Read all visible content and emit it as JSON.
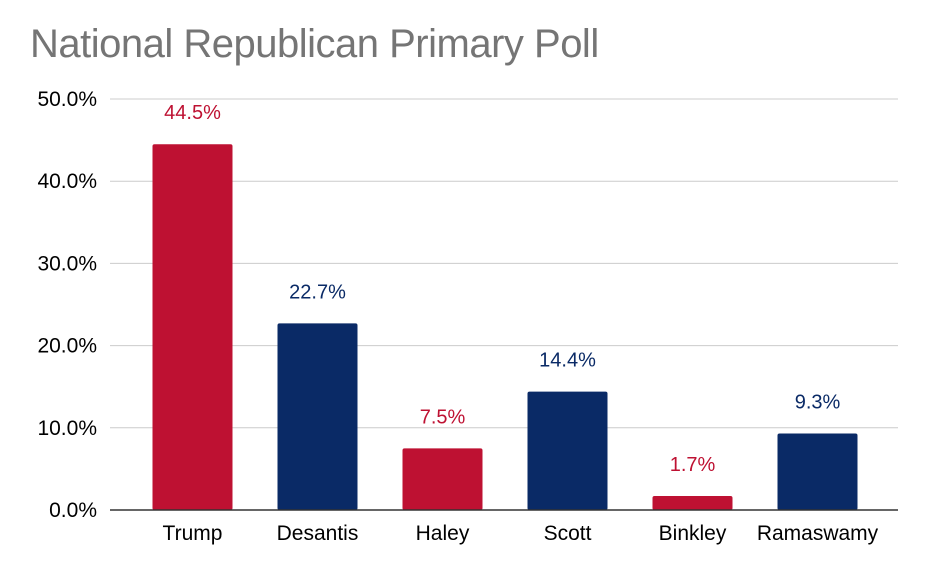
{
  "chart_data": {
    "type": "bar",
    "title": "National Republican Primary Poll",
    "xlabel": "",
    "ylabel": "",
    "categories": [
      "Trump",
      "Desantis",
      "Haley",
      "Scott",
      "Binkley",
      "Ramaswamy"
    ],
    "values": [
      44.5,
      22.7,
      7.5,
      14.4,
      1.7,
      9.3
    ],
    "data_labels": [
      "44.5%",
      "22.7%",
      "7.5%",
      "14.4%",
      "1.7%",
      "9.3%"
    ],
    "bar_colors": [
      "#BE1132",
      "#0A2A66",
      "#BE1132",
      "#0A2A66",
      "#BE1132",
      "#0A2A66"
    ],
    "ylim": [
      0,
      50
    ],
    "yticks": [
      0,
      10,
      20,
      30,
      40,
      50
    ],
    "ytick_labels": [
      "0.0%",
      "10.0%",
      "20.0%",
      "30.0%",
      "40.0%",
      "50.0%"
    ],
    "grid": true,
    "legend": "none",
    "colors": {
      "red": "#BE1132",
      "blue": "#0A2A66",
      "title": "#757575",
      "grid": "#CCCCCC",
      "axis": "#333333"
    }
  }
}
